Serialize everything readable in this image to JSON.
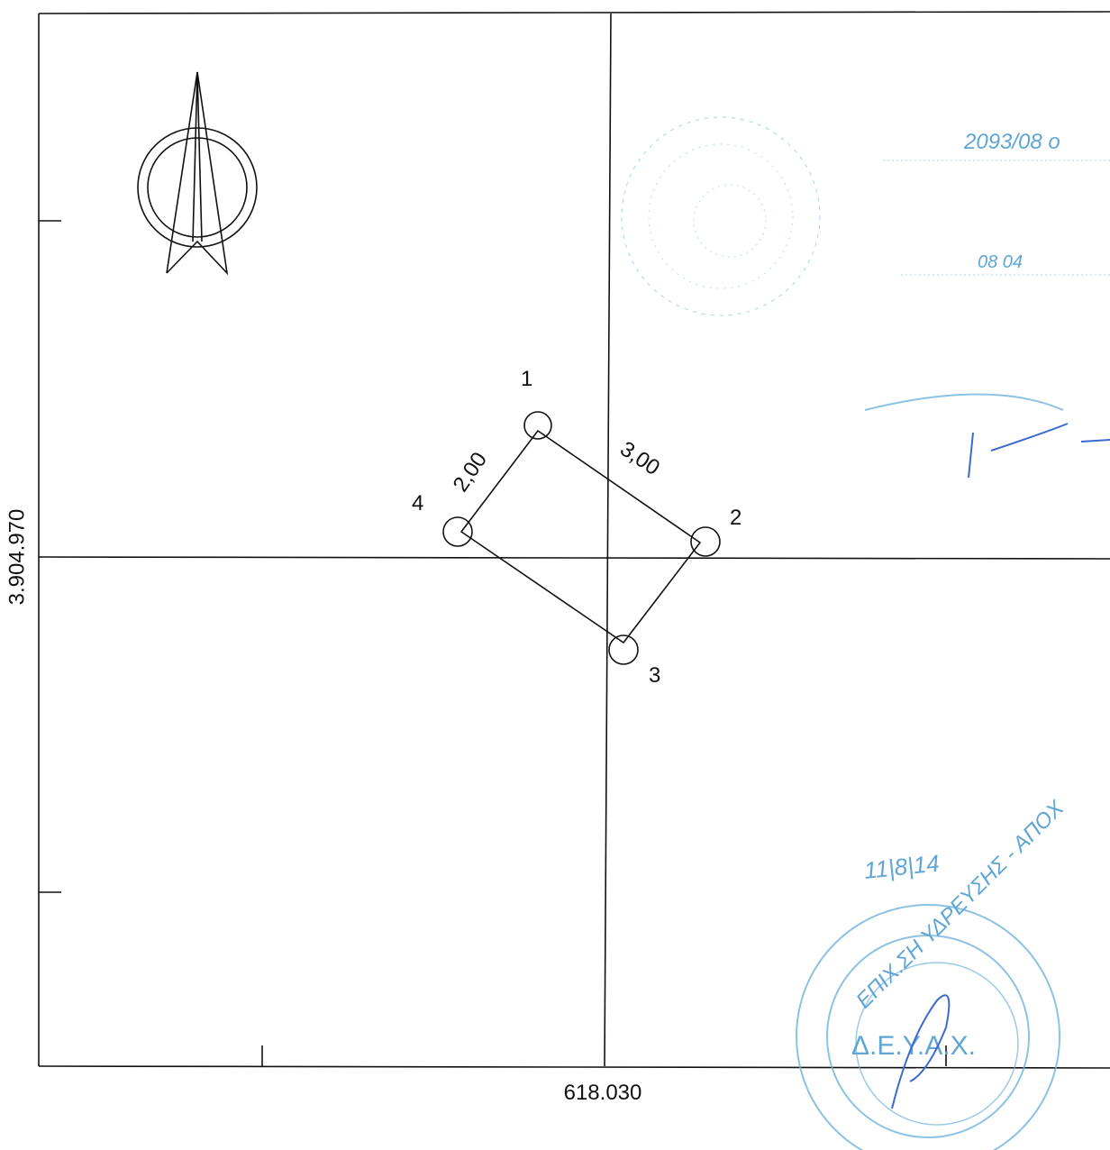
{
  "axes": {
    "y_label": "3.904.970",
    "x_label": "618.030"
  },
  "points": [
    {
      "label": "1"
    },
    {
      "label": "2"
    },
    {
      "label": "3"
    },
    {
      "label": "4"
    }
  ],
  "edges": [
    {
      "label": "2,00"
    },
    {
      "label": "3,00"
    }
  ],
  "stamps": {
    "protocol": "2093/08 ο",
    "date": "08 04",
    "handwritten_date": "11|8|14",
    "org_ring": "ΕΠΙΧ.ΣΗ ΥΔΡΕΥΣΗΣ - ΑΠΟΧ",
    "org_abbr": "Δ.Ε.Υ.Α.Χ."
  }
}
